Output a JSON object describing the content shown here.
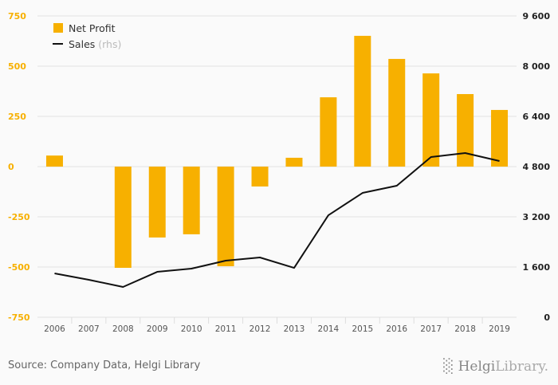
{
  "chart_data": {
    "type": "bar",
    "categories": [
      "2006",
      "2007",
      "2008",
      "2009",
      "2010",
      "2011",
      "2012",
      "2013",
      "2014",
      "2015",
      "2016",
      "2017",
      "2018",
      "2019"
    ],
    "series": [
      {
        "name": "Net Profit",
        "axis": "left",
        "type": "bar",
        "color": "#f7b000",
        "values": [
          55,
          0,
          -504,
          -353,
          -337,
          -496,
          -99,
          44,
          345,
          651,
          536,
          464,
          361,
          282
        ]
      },
      {
        "name": "Sales",
        "suffix": "(rhs)",
        "axis": "right",
        "type": "line",
        "color": "#111111",
        "values": [
          1397,
          1194,
          965,
          1447,
          1549,
          1803,
          1905,
          1574,
          3250,
          3961,
          4190,
          5104,
          5231,
          4977
        ]
      }
    ],
    "y_left": {
      "range": [
        -750,
        750
      ],
      "ticks": [
        "750",
        "500",
        "250",
        "0",
        "-250",
        "-500",
        "-750"
      ],
      "tick_values": [
        750,
        500,
        250,
        0,
        -250,
        -500,
        -750
      ],
      "color": "#f7b000"
    },
    "y_right": {
      "range": [
        0,
        9600
      ],
      "ticks": [
        "9 600",
        "8 000",
        "6 400",
        "4 800",
        "3 200",
        "1 600",
        "0"
      ],
      "tick_values": [
        9600,
        8000,
        6400,
        4800,
        3200,
        1600,
        0
      ]
    },
    "grid": true,
    "legend": "top-left"
  },
  "footer": {
    "source": "Source: Company Data, Helgi Library",
    "logo_text": "HelgiLibrary."
  }
}
